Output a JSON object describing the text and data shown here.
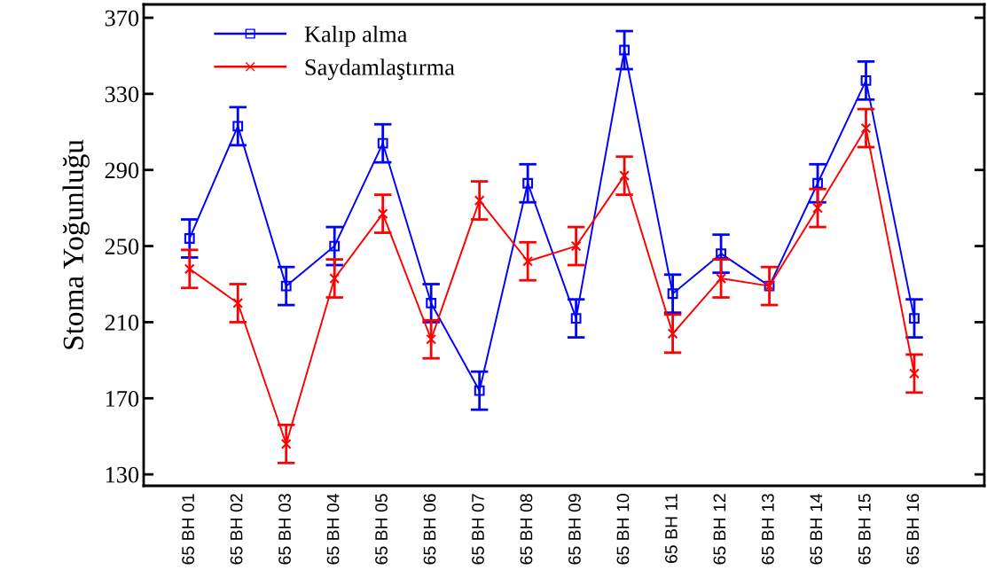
{
  "chart_data": {
    "type": "line",
    "ylabel": "Stoma Yoğunluğu",
    "categories": [
      "65 BH 01",
      "65 BH 02",
      "65 BH 03",
      "65 BH 04",
      "65 BH 05",
      "65 BH 06",
      "65 BH 07",
      "65 BH 08",
      "65 BH 09",
      "65 BH 10",
      "65 BH 11",
      "65 BH 12",
      "65 BH 13",
      "65 BH 14",
      "65 BH 15",
      "65 BH 16"
    ],
    "series": [
      {
        "name": "Kalıp alma",
        "color": "#0000ff",
        "marker": "square",
        "values": [
          254,
          313,
          229,
          250,
          304,
          220,
          174,
          283,
          212,
          353,
          225,
          246,
          229,
          283,
          337,
          212
        ],
        "errors": [
          10,
          10,
          10,
          10,
          10,
          10,
          10,
          10,
          10,
          10,
          10,
          10,
          null,
          10,
          10,
          10
        ]
      },
      {
        "name": "Saydamlaştırma",
        "color": "#ff0000",
        "marker": "cross",
        "values": [
          238,
          220,
          146,
          233,
          267,
          201,
          274,
          242,
          250,
          287,
          204,
          233,
          229,
          270,
          312,
          183
        ],
        "errors": [
          10,
          10,
          10,
          10,
          10,
          10,
          10,
          10,
          10,
          10,
          10,
          10,
          10,
          10,
          10,
          10
        ]
      }
    ],
    "ylim": [
      124,
      377
    ],
    "yticks": [
      130,
      170,
      210,
      250,
      290,
      330,
      370
    ],
    "grid": false,
    "legend": "top left",
    "line_style": "solid"
  }
}
